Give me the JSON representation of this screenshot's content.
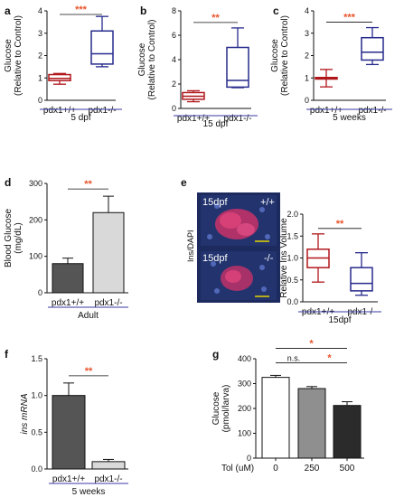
{
  "colors": {
    "wt": "#b0171b",
    "ko": "#262a8c",
    "bar_dark": "#555555",
    "bar_light": "#d9d9d9",
    "bar_mid": "#8f8f8f",
    "bar_darkest": "#2b2b2b",
    "group_line": "#3a3aa6",
    "sig_star": "#e8542a",
    "image_bg": "#1c2a5e",
    "image_cells": "#d8346e"
  },
  "panels": {
    "a": {
      "label": "a"
    },
    "b": {
      "label": "b"
    },
    "c": {
      "label": "c"
    },
    "d": {
      "label": "d"
    },
    "e": {
      "label": "e"
    },
    "f": {
      "label": "f"
    },
    "g": {
      "label": "g"
    }
  },
  "image_panel": {
    "stain_label": "Ins/DAPI",
    "top": {
      "time": "15dpf",
      "genotype": "+/+"
    },
    "bottom": {
      "time": "15dpf",
      "genotype": "-/-"
    }
  },
  "chart_data": [
    {
      "id": "a",
      "type": "box",
      "ylabel": "Glucose\n(Relative to Control)",
      "ylim": [
        0,
        4
      ],
      "yticks": [
        "0",
        "1",
        "2",
        "3",
        "4"
      ],
      "categories": [
        "pdx1+/+",
        "pdx1-/-"
      ],
      "group_label": "5 dpf",
      "significance": "***",
      "boxes": [
        {
          "category": "pdx1+/+",
          "min": 0.72,
          "q1": 0.88,
          "median": 0.98,
          "q3": 1.15,
          "max": 1.2
        },
        {
          "category": "pdx1-/-",
          "min": 1.5,
          "q1": 1.62,
          "median": 2.08,
          "q3": 3.1,
          "max": 3.75
        }
      ]
    },
    {
      "id": "b",
      "type": "box",
      "ylabel": "Glucose\n(Relative to Control)",
      "ylim": [
        0,
        8
      ],
      "yticks": [
        "0",
        "2",
        "4",
        "6",
        "8"
      ],
      "categories": [
        "pdx1+/+",
        "pdx1-/-"
      ],
      "group_label": "15 dpf",
      "significance": "**",
      "boxes": [
        {
          "category": "pdx1+/+",
          "min": 0.55,
          "q1": 0.75,
          "median": 1.0,
          "q3": 1.3,
          "max": 1.45
        },
        {
          "category": "pdx1-/-",
          "min": 1.7,
          "q1": 1.75,
          "median": 2.3,
          "q3": 5.0,
          "max": 6.6
        }
      ]
    },
    {
      "id": "c",
      "type": "box",
      "ylabel": "Glucose\n(Relative to Control)",
      "ylim": [
        0,
        4
      ],
      "yticks": [
        "0",
        "1",
        "2",
        "3",
        "4"
      ],
      "categories": [
        "pdx1+/+",
        "pdx1-/-"
      ],
      "group_label": "5 weeks",
      "significance": "***",
      "boxes": [
        {
          "category": "pdx1+/+",
          "min": 0.6,
          "q1": 0.95,
          "median": 1.0,
          "q3": 1.02,
          "max": 1.38
        },
        {
          "category": "pdx1-/-",
          "min": 1.6,
          "q1": 1.8,
          "median": 2.15,
          "q3": 2.8,
          "max": 3.25
        }
      ]
    },
    {
      "id": "d",
      "type": "bar",
      "ylabel": "Blood Glucose\n(mg/dL)",
      "ylim": [
        0,
        300
      ],
      "yticks": [
        "0",
        "100",
        "200",
        "300"
      ],
      "categories": [
        "pdx1+/+",
        "pdx1-/-"
      ],
      "values": [
        80,
        220
      ],
      "errors": [
        15,
        45
      ],
      "group_label": "Adult",
      "significance": "**"
    },
    {
      "id": "e",
      "type": "box",
      "ylabel": "Relative Ins Volume",
      "ylim": [
        0,
        2
      ],
      "yticks": [
        "0.0",
        "0.5",
        "1.0",
        "1.5",
        "2.0"
      ],
      "categories": [
        "pdx1+/+",
        "pdx1-/-"
      ],
      "group_label": "15dpf",
      "significance": "**",
      "boxes": [
        {
          "category": "pdx1+/+",
          "min": 0.45,
          "q1": 0.78,
          "median": 1.0,
          "q3": 1.2,
          "max": 1.55
        },
        {
          "category": "pdx1-/-",
          "min": 0.15,
          "q1": 0.25,
          "median": 0.42,
          "q3": 0.78,
          "max": 1.12
        }
      ]
    },
    {
      "id": "f",
      "type": "bar",
      "ylabel": "ins mRNA",
      "ylim": [
        0,
        1.5
      ],
      "yticks": [
        "0.0",
        "0.5",
        "1.0",
        "1.5"
      ],
      "categories": [
        "pdx1+/+",
        "pdx1-/-"
      ],
      "values": [
        1.0,
        0.1
      ],
      "errors": [
        0.17,
        0.03
      ],
      "group_label": "5 weeks",
      "significance": "**"
    },
    {
      "id": "g",
      "type": "bar",
      "ylabel": "Glucose\n(pmol/larva)",
      "ylim": [
        0,
        400
      ],
      "yticks": [
        "0",
        "100",
        "200",
        "300",
        "400"
      ],
      "categories": [
        "0",
        "250",
        "500"
      ],
      "xlabel": "Tol (uM)",
      "values": [
        325,
        280,
        212
      ],
      "errors": [
        8,
        8,
        15
      ],
      "comparisons": [
        {
          "from": 0,
          "to": 1,
          "label": "n.s."
        },
        {
          "from": 1,
          "to": 2,
          "label": "*"
        },
        {
          "from": 0,
          "to": 2,
          "label": "*"
        }
      ]
    }
  ]
}
